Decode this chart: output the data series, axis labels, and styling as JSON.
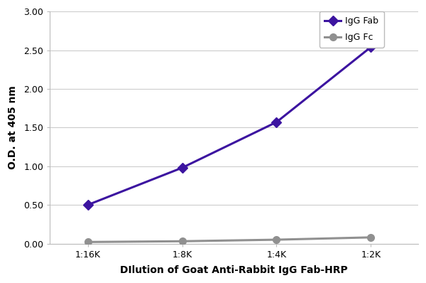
{
  "x_labels": [
    "1:16K",
    "1:8K",
    "1:4K",
    "1:2K"
  ],
  "x_values": [
    0,
    1,
    2,
    3
  ],
  "fab_values": [
    0.5,
    0.98,
    1.57,
    2.54
  ],
  "fc_values": [
    0.02,
    0.03,
    0.05,
    0.08
  ],
  "fab_color": "#3c14a0",
  "fc_color": "#909090",
  "fab_label": "IgG Fab",
  "fc_label": "IgG Fc",
  "ylabel": "O.D. at 405 nm",
  "xlabel": "DIlution of Goat Anti-Rabbit IgG Fab-HRP",
  "ylim": [
    0,
    3.0
  ],
  "yticks": [
    0.0,
    0.5,
    1.0,
    1.5,
    2.0,
    2.5,
    3.0
  ],
  "grid_color": "#cccccc",
  "bg_color": "#ffffff",
  "fab_marker": "D",
  "fc_marker": "o",
  "linewidth": 2.2,
  "fab_markersize": 7,
  "fc_markersize": 7,
  "legend_fab": "IgG Fab",
  "legend_fc": "IgG Fc"
}
